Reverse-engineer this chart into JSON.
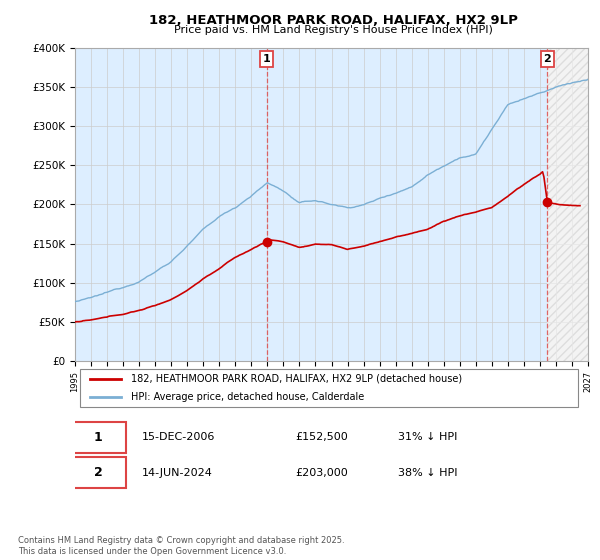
{
  "title": "182, HEATHMOOR PARK ROAD, HALIFAX, HX2 9LP",
  "subtitle": "Price paid vs. HM Land Registry's House Price Index (HPI)",
  "ylim": [
    0,
    400000
  ],
  "xlim_start": 1995.0,
  "xlim_end": 2027.0,
  "line_red_color": "#cc0000",
  "line_blue_color": "#7bafd4",
  "grid_color": "#cccccc",
  "bg_color": "#ffffff",
  "chart_bg_color": "#ddeeff",
  "sale1_x": 2006.96,
  "sale1_y": 152500,
  "sale1_label": "1",
  "sale2_x": 2024.46,
  "sale2_y": 203000,
  "sale2_label": "2",
  "legend_line1": "182, HEATHMOOR PARK ROAD, HALIFAX, HX2 9LP (detached house)",
  "legend_line2": "HPI: Average price, detached house, Calderdale",
  "ann1_date": "15-DEC-2006",
  "ann1_price": "£152,500",
  "ann1_hpi": "31% ↓ HPI",
  "ann2_date": "14-JUN-2024",
  "ann2_price": "£203,000",
  "ann2_hpi": "38% ↓ HPI",
  "footnote": "Contains HM Land Registry data © Crown copyright and database right 2025.\nThis data is licensed under the Open Government Licence v3.0.",
  "dashed_line_color": "#dd4444",
  "dashed_line_alpha": 0.8
}
